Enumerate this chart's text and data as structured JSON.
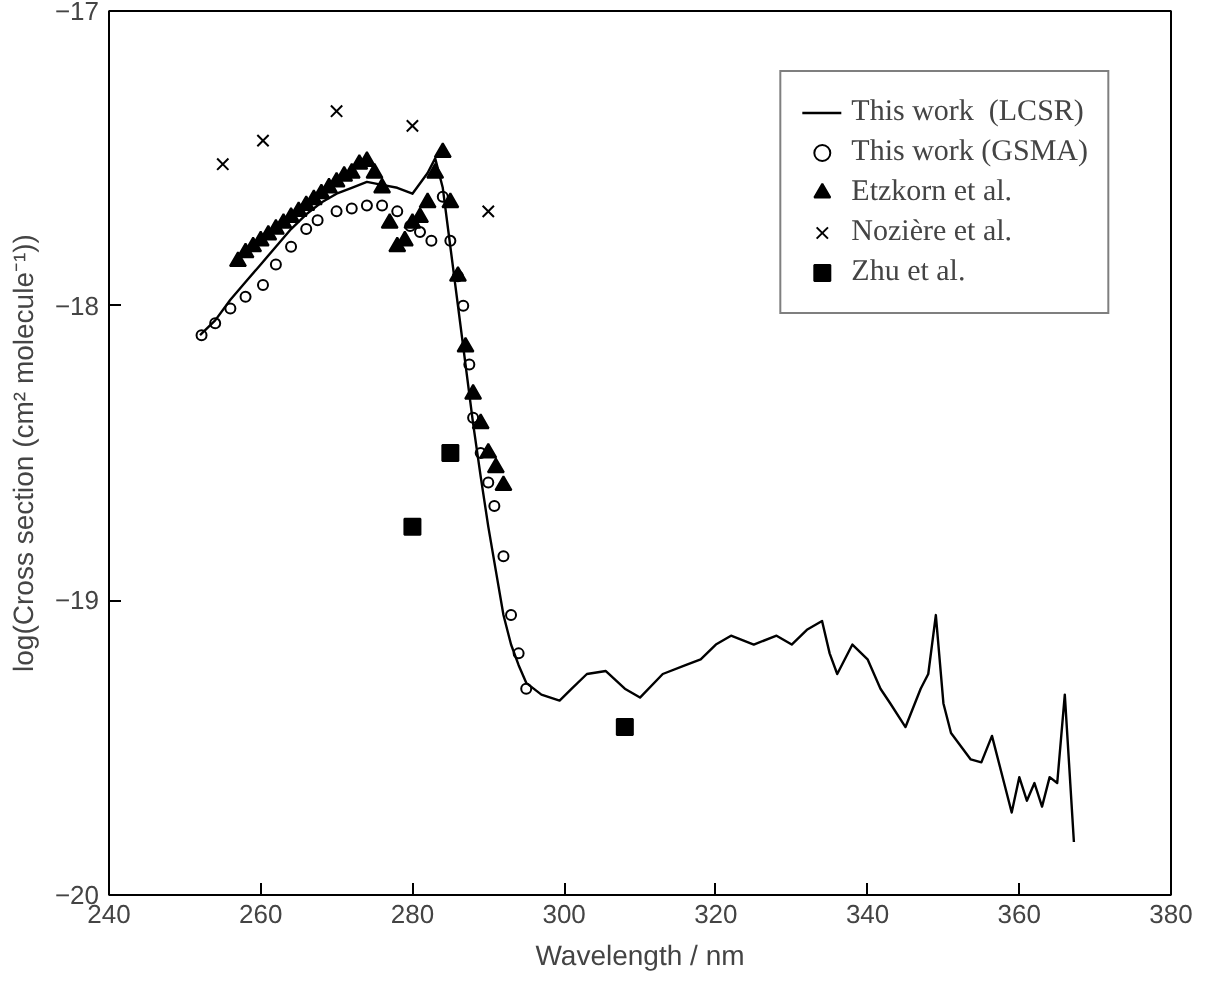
{
  "chart_data": {
    "type": "line",
    "xlabel": "Wavelength / nm",
    "ylabel": "log(Cross section (cm² molecule⁻¹))",
    "xlim": [
      240,
      380
    ],
    "xticks": [
      240,
      260,
      280,
      300,
      320,
      340,
      360,
      380
    ],
    "ylim": [
      -20,
      -17
    ],
    "yticks": [
      -20,
      -19,
      -18,
      -17
    ],
    "grid": false,
    "legend": "top right",
    "series": [
      {
        "name": "This work  (LCSR)",
        "color": "#000000",
        "marker": "none",
        "line_style": "solid",
        "x": [
          252,
          254,
          256,
          258,
          260,
          262,
          264,
          266,
          268,
          270,
          272,
          274,
          276,
          278,
          280,
          282,
          283,
          284,
          285,
          286,
          287,
          288,
          289,
          290,
          291,
          292,
          293,
          294,
          295,
          297,
          299.4,
          301,
          303,
          305.5,
          308,
          310,
          313,
          316,
          318,
          320,
          322,
          325,
          328,
          330,
          332,
          334,
          335,
          336,
          338,
          340,
          341.7,
          343,
          345,
          347,
          348,
          349,
          350,
          351,
          353.6,
          355,
          356.4,
          358,
          359,
          360,
          361,
          362,
          363,
          364,
          365,
          366,
          367.2
        ],
        "values": [
          -18.1,
          -18.05,
          -17.98,
          -17.92,
          -17.86,
          -17.8,
          -17.74,
          -17.69,
          -17.65,
          -17.62,
          -17.6,
          -17.58,
          -17.59,
          -17.6,
          -17.62,
          -17.55,
          -17.5,
          -17.6,
          -17.8,
          -18.0,
          -18.2,
          -18.4,
          -18.58,
          -18.75,
          -18.9,
          -19.05,
          -19.15,
          -19.22,
          -19.28,
          -19.32,
          -19.34,
          -19.3,
          -19.25,
          -19.24,
          -19.3,
          -19.33,
          -19.25,
          -19.22,
          -19.2,
          -19.15,
          -19.12,
          -19.15,
          -19.12,
          -19.15,
          -19.1,
          -19.07,
          -19.18,
          -19.25,
          -19.15,
          -19.2,
          -19.3,
          -19.35,
          -19.43,
          -19.3,
          -19.25,
          -19.05,
          -19.35,
          -19.45,
          -19.54,
          -19.55,
          -19.46,
          -19.62,
          -19.72,
          -19.6,
          -19.68,
          -19.62,
          -19.7,
          -19.6,
          -19.62,
          -19.32,
          -19.82
        ]
      },
      {
        "name": "This work (GSMA)",
        "type": "scatter",
        "color": "#000000",
        "marker": "circle",
        "x": [
          252.2,
          254,
          256,
          258,
          260.3,
          262,
          264,
          266,
          267.5,
          270,
          272,
          274,
          276,
          278,
          279.7,
          281,
          282.5,
          284,
          285,
          286,
          286.7,
          287.5,
          288,
          289,
          290,
          290.8,
          292,
          293,
          294,
          295
        ],
        "values": [
          -18.1,
          -18.06,
          -18.01,
          -17.97,
          -17.93,
          -17.86,
          -17.8,
          -17.74,
          -17.71,
          -17.68,
          -17.67,
          -17.66,
          -17.66,
          -17.68,
          -17.73,
          -17.75,
          -17.78,
          -17.63,
          -17.78,
          -17.9,
          -18.0,
          -18.2,
          -18.38,
          -18.5,
          -18.6,
          -18.68,
          -18.85,
          -19.05,
          -19.18,
          -19.3
        ]
      },
      {
        "name": "Etzkorn et al.",
        "type": "scatter",
        "color": "#000000",
        "marker": "triangle",
        "x": [
          257,
          258,
          259,
          260,
          261,
          262,
          263,
          264,
          265,
          266,
          267,
          268,
          269,
          270,
          271,
          272,
          273,
          274,
          275,
          276,
          277,
          278,
          279,
          280,
          281,
          282,
          283,
          284,
          285,
          286,
          287,
          288,
          289,
          290,
          291,
          292
        ],
        "values": [
          -17.85,
          -17.82,
          -17.8,
          -17.78,
          -17.76,
          -17.74,
          -17.72,
          -17.7,
          -17.68,
          -17.66,
          -17.64,
          -17.62,
          -17.6,
          -17.58,
          -17.56,
          -17.55,
          -17.52,
          -17.51,
          -17.55,
          -17.6,
          -17.72,
          -17.8,
          -17.78,
          -17.72,
          -17.7,
          -17.65,
          -17.55,
          -17.48,
          -17.65,
          -17.9,
          -18.14,
          -18.3,
          -18.4,
          -18.5,
          -18.55,
          -18.61
        ]
      },
      {
        "name": "Nozière et al.",
        "type": "scatter",
        "color": "#000000",
        "marker": "cross",
        "x": [
          255,
          260.3,
          270,
          280,
          290
        ],
        "values": [
          -17.52,
          -17.44,
          -17.34,
          -17.39,
          -17.68
        ]
      },
      {
        "name": "Zhu et al.",
        "type": "scatter",
        "color": "#000000",
        "marker": "square",
        "x": [
          280,
          285,
          308
        ],
        "values": [
          -18.75,
          -18.5,
          -19.43
        ]
      }
    ]
  }
}
